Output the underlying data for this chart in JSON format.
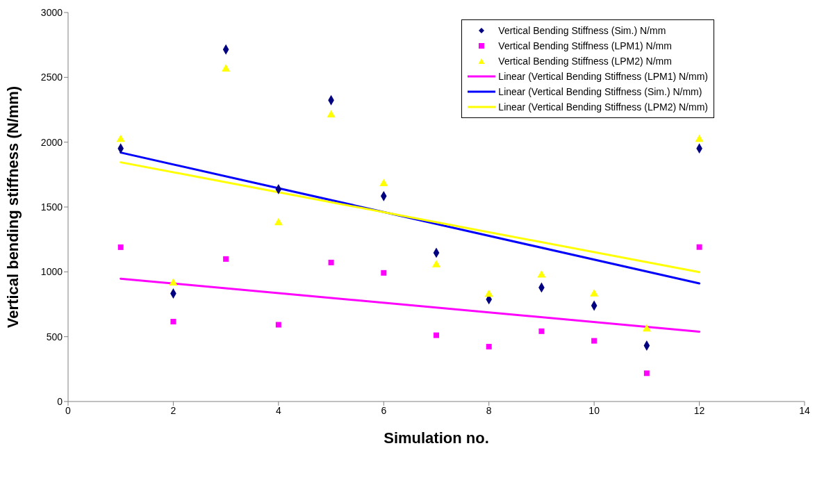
{
  "chart_data": {
    "type": "scatter",
    "xlabel": "Simulation no.",
    "ylabel": "Vertical bending stiffness (N/mm)",
    "x": [
      1,
      2,
      3,
      4,
      5,
      6,
      7,
      8,
      9,
      10,
      11,
      12
    ],
    "xlim": [
      0,
      14
    ],
    "xticks": [
      0,
      2,
      4,
      6,
      8,
      10,
      12,
      14
    ],
    "ylim": [
      0,
      3000
    ],
    "yticks": [
      0,
      500,
      1000,
      1500,
      2000,
      2500,
      3000
    ],
    "grid": false,
    "legend": "top right",
    "series": [
      {
        "name": "Vertical Bending Stiffness (Sim.) N/mm",
        "color": "#000080",
        "marker": "diamond",
        "values": [
          1951,
          833,
          2715,
          1637,
          2324,
          1584,
          1147,
          788,
          879,
          739,
          431,
          1952
        ]
      },
      {
        "name": "Vertical Bending Stiffness (LPM1) N/mm",
        "color": "#ff00ff",
        "marker": "square",
        "values": [
          1190,
          616,
          1099,
          592,
          1072,
          992,
          511,
          423,
          542,
          468,
          218,
          1191
        ]
      },
      {
        "name": "Vertical Bending Stiffness (LPM2) N/mm",
        "color": "#ffff00",
        "marker": "triangle",
        "values": [
          2021,
          913,
          2564,
          1378,
          2210,
          1679,
          1054,
          826,
          975,
          829,
          559,
          2021
        ]
      },
      {
        "name": "Linear (Vertical Bending Stiffness (LPM1) N/mm)",
        "type": "line",
        "color": "#ff00ff",
        "marker": "none",
        "values": [
          947,
          null,
          null,
          null,
          null,
          null,
          null,
          null,
          null,
          null,
          null,
          539
        ]
      },
      {
        "name": "Linear (Vertical Bending Stiffness (Sim.) N/mm)",
        "type": "line",
        "color": "#0000ff",
        "marker": "none",
        "values": [
          1920,
          null,
          null,
          null,
          null,
          null,
          null,
          null,
          null,
          null,
          null,
          911
        ]
      },
      {
        "name": "Linear (Vertical Bending Stiffness (LPM2) N/mm)",
        "type": "line",
        "color": "#ffff00",
        "marker": "none",
        "values": [
          1845,
          null,
          null,
          null,
          null,
          null,
          null,
          null,
          null,
          null,
          null,
          998
        ]
      }
    ]
  }
}
